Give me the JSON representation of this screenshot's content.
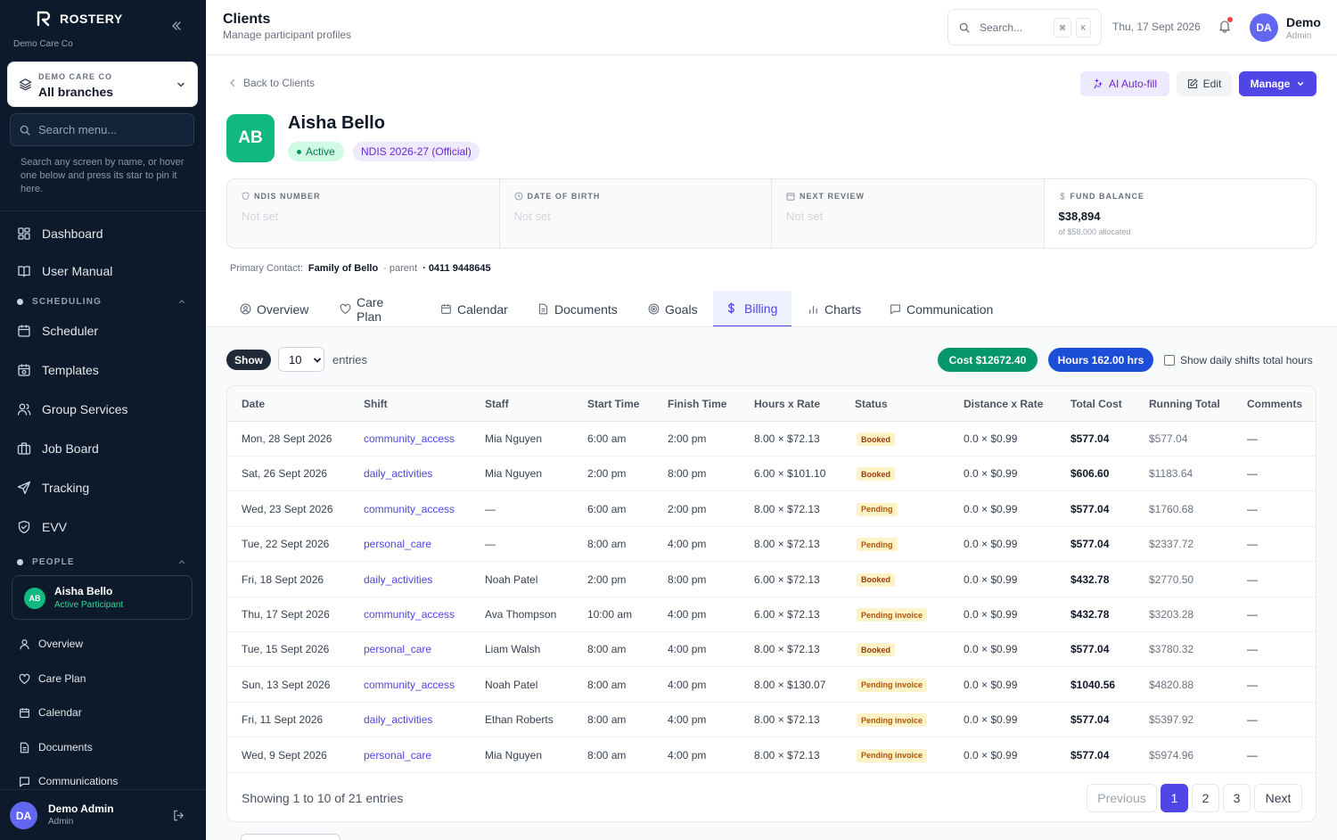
{
  "sidebar": {
    "brand": "ROSTERY",
    "org": "Demo Care Co",
    "branch_label": "DEMO CARE CO",
    "branch_value": "All branches",
    "search_placeholder": "Search menu...",
    "help": "Search any screen by name, or hover one below and press its star to pin it here.",
    "top_items": [
      {
        "label": "Dashboard",
        "icon": "grid-icon"
      },
      {
        "label": "User Manual",
        "icon": "book-icon"
      }
    ],
    "scheduling_label": "SCHEDULING",
    "scheduling_items": [
      {
        "label": "Scheduler",
        "icon": "calendar-icon"
      },
      {
        "label": "Templates",
        "icon": "calendar-template-icon"
      },
      {
        "label": "Group Services",
        "icon": "users-icon"
      },
      {
        "label": "Job Board",
        "icon": "briefcase-icon"
      },
      {
        "label": "Tracking",
        "icon": "send-icon"
      },
      {
        "label": "EVV",
        "icon": "shield-icon"
      }
    ],
    "people_label": "PEOPLE",
    "participant": {
      "initials": "AB",
      "name": "Aisha Bello",
      "role": "Active Participant"
    },
    "participant_items": [
      {
        "label": "Overview",
        "icon": "user-icon"
      },
      {
        "label": "Care Plan",
        "icon": "heart-icon"
      },
      {
        "label": "Calendar",
        "icon": "calendar-icon"
      },
      {
        "label": "Documents",
        "icon": "document-icon"
      },
      {
        "label": "Communications",
        "icon": "message-icon"
      }
    ],
    "user": {
      "initials": "DA",
      "name": "Demo Admin",
      "role": "Admin"
    }
  },
  "header": {
    "title": "Clients",
    "subtitle": "Manage participant profiles",
    "search_placeholder": "Search...",
    "kbd1": "⌘",
    "kbd2": "K",
    "date": "Thu, 17 Sept 2026",
    "user": {
      "initials": "DA",
      "name": "Demo",
      "role": "Admin"
    }
  },
  "page": {
    "back": "Back to Clients",
    "ai_button": "AI Auto-fill",
    "edit_button": "Edit",
    "manage_button": "Manage",
    "client": {
      "initials": "AB",
      "name": "Aisha Bello",
      "status": "Active",
      "plan": "NDIS 2026-27 (Official)"
    },
    "info": [
      {
        "label": "NDIS NUMBER",
        "value": "Not set",
        "icon": "shield-icon"
      },
      {
        "label": "DATE OF BIRTH",
        "value": "Not set",
        "icon": "clock-icon"
      },
      {
        "label": "NEXT REVIEW",
        "value": "Not set",
        "icon": "calendar-icon"
      },
      {
        "label": "FUND BALANCE",
        "value": "$38,894",
        "sub": "of $58,000 allocated",
        "icon": "dollar-icon"
      }
    ],
    "contact": {
      "label": "Primary Contact:",
      "name": "Family of Bello",
      "relation": "· parent",
      "phone": "· 0411 9448645"
    },
    "tabs": [
      "Overview",
      "Care Plan",
      "Calendar",
      "Documents",
      "Goals",
      "Billing",
      "Charts",
      "Communication"
    ],
    "active_tab": "Billing"
  },
  "billing": {
    "show_label": "Show",
    "page_size": "10",
    "entries_label": "entries",
    "cost_pill": "Cost $12672.40",
    "hours_pill": "Hours 162.00 hrs",
    "daily_toggle": "Show daily shifts total hours",
    "columns": [
      "Date",
      "Shift",
      "Staff",
      "Start Time",
      "Finish Time",
      "Hours x Rate",
      "Status",
      "Distance x Rate",
      "Total Cost",
      "Running Total",
      "Comments"
    ],
    "rows": [
      {
        "date": "Mon, 28 Sept 2026",
        "shift": "community_access",
        "staff": "Mia Nguyen",
        "start": "6:00 am",
        "finish": "2:00 pm",
        "hours_rate": "8.00 × $72.13",
        "status": "Booked",
        "distance": "0.0 × $0.99",
        "total": "$577.04",
        "running": "$577.04",
        "comments": "—"
      },
      {
        "date": "Sat, 26 Sept 2026",
        "shift": "daily_activities",
        "staff": "Mia Nguyen",
        "start": "2:00 pm",
        "finish": "8:00 pm",
        "hours_rate": "6.00 × $101.10",
        "status": "Booked",
        "distance": "0.0 × $0.99",
        "total": "$606.60",
        "running": "$1183.64",
        "comments": "—"
      },
      {
        "date": "Wed, 23 Sept 2026",
        "shift": "community_access",
        "staff": "—",
        "start": "6:00 am",
        "finish": "2:00 pm",
        "hours_rate": "8.00 × $72.13",
        "status": "Pending",
        "distance": "0.0 × $0.99",
        "total": "$577.04",
        "running": "$1760.68",
        "comments": "—"
      },
      {
        "date": "Tue, 22 Sept 2026",
        "shift": "personal_care",
        "staff": "—",
        "start": "8:00 am",
        "finish": "4:00 pm",
        "hours_rate": "8.00 × $72.13",
        "status": "Pending",
        "distance": "0.0 × $0.99",
        "total": "$577.04",
        "running": "$2337.72",
        "comments": "—"
      },
      {
        "date": "Fri, 18 Sept 2026",
        "shift": "daily_activities",
        "staff": "Noah Patel",
        "start": "2:00 pm",
        "finish": "8:00 pm",
        "hours_rate": "6.00 × $72.13",
        "status": "Booked",
        "distance": "0.0 × $0.99",
        "total": "$432.78",
        "running": "$2770.50",
        "comments": "—"
      },
      {
        "date": "Thu, 17 Sept 2026",
        "shift": "community_access",
        "staff": "Ava Thompson",
        "start": "10:00 am",
        "finish": "4:00 pm",
        "hours_rate": "6.00 × $72.13",
        "status": "Pending invoice",
        "distance": "0.0 × $0.99",
        "total": "$432.78",
        "running": "$3203.28",
        "comments": "—"
      },
      {
        "date": "Tue, 15 Sept 2026",
        "shift": "personal_care",
        "staff": "Liam Walsh",
        "start": "8:00 am",
        "finish": "4:00 pm",
        "hours_rate": "8.00 × $72.13",
        "status": "Booked",
        "distance": "0.0 × $0.99",
        "total": "$577.04",
        "running": "$3780.32",
        "comments": "—"
      },
      {
        "date": "Sun, 13 Sept 2026",
        "shift": "community_access",
        "staff": "Noah Patel",
        "start": "8:00 am",
        "finish": "4:00 pm",
        "hours_rate": "8.00 × $130.07",
        "status": "Pending invoice",
        "distance": "0.0 × $0.99",
        "total": "$1040.56",
        "running": "$4820.88",
        "comments": "—"
      },
      {
        "date": "Fri, 11 Sept 2026",
        "shift": "daily_activities",
        "staff": "Ethan Roberts",
        "start": "8:00 am",
        "finish": "4:00 pm",
        "hours_rate": "8.00 × $72.13",
        "status": "Pending invoice",
        "distance": "0.0 × $0.99",
        "total": "$577.04",
        "running": "$5397.92",
        "comments": "—"
      },
      {
        "date": "Wed, 9 Sept 2026",
        "shift": "personal_care",
        "staff": "Mia Nguyen",
        "start": "8:00 am",
        "finish": "4:00 pm",
        "hours_rate": "8.00 × $72.13",
        "status": "Pending invoice",
        "distance": "0.0 × $0.99",
        "total": "$577.04",
        "running": "$5974.96",
        "comments": "—"
      }
    ],
    "footer": "Showing 1 to 10 of 21 entries",
    "pagination": {
      "previous": "Previous",
      "pages": [
        "1",
        "2",
        "3"
      ],
      "current": "1",
      "next": "Next"
    }
  }
}
